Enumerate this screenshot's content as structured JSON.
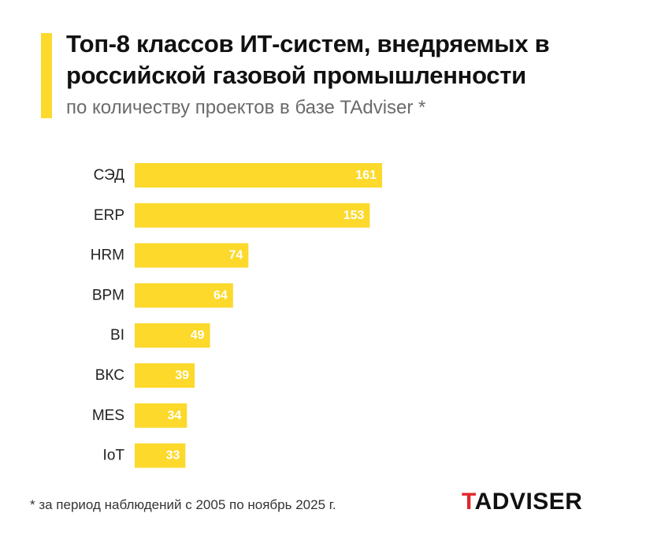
{
  "header": {
    "title": "Топ-8 классов ИТ-систем, внедряемых в российской газовой промышленности",
    "subtitle": "по количеству проектов в базе TAdviser *"
  },
  "footer": {
    "footnote": "* за период наблюдений с 2005 по ноябрь 2025 г.",
    "logo_first": "T",
    "logo_rest": "ADVISER"
  },
  "colors": {
    "bar": "#FCD92B",
    "accent": "#FCD92B",
    "logo_red": "#E3262B"
  },
  "chart_data": {
    "type": "bar",
    "orientation": "horizontal",
    "title": "Топ-8 классов ИТ-систем, внедряемых в российской газовой промышленности",
    "subtitle": "по количеству проектов в базе TAdviser *",
    "categories": [
      "СЭД",
      "ERP",
      "HRM",
      "BPM",
      "BI",
      "ВКС",
      "MES",
      "IoT"
    ],
    "values": [
      161,
      153,
      74,
      64,
      49,
      39,
      34,
      33
    ],
    "xlabel": "",
    "ylabel": "",
    "xlim": [
      0,
      161
    ],
    "grid": false,
    "legend": "none",
    "data_labels": "inside-end"
  }
}
